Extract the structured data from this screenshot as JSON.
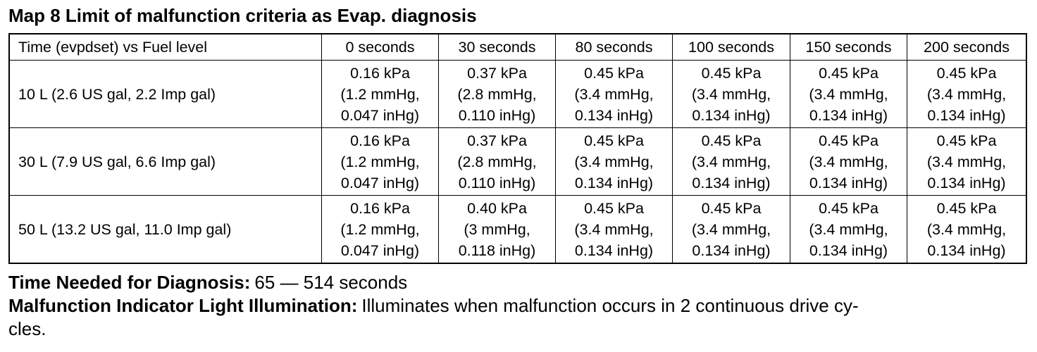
{
  "title": "Map 8 Limit of malfunction criteria as Evap. diagnosis",
  "table": {
    "header": [
      "Time (evpdset) vs Fuel level",
      "0 seconds",
      "30 seconds",
      "80 seconds",
      "100 seconds",
      "150 seconds",
      "200 seconds"
    ],
    "rows": [
      {
        "label": "10 L (2.6 US gal, 2.2 Imp gal)",
        "cells": [
          [
            "0.16 kPa",
            "(1.2 mmHg,",
            "0.047 inHg)"
          ],
          [
            "0.37 kPa",
            "(2.8 mmHg,",
            "0.110 inHg)"
          ],
          [
            "0.45 kPa",
            "(3.4 mmHg,",
            "0.134 inHg)"
          ],
          [
            "0.45 kPa",
            "(3.4 mmHg,",
            "0.134 inHg)"
          ],
          [
            "0.45 kPa",
            "(3.4 mmHg,",
            "0.134 inHg)"
          ],
          [
            "0.45 kPa",
            "(3.4 mmHg,",
            "0.134 inHg)"
          ]
        ]
      },
      {
        "label": "30 L (7.9 US gal, 6.6 Imp gal)",
        "cells": [
          [
            "0.16 kPa",
            "(1.2 mmHg,",
            "0.047 inHg)"
          ],
          [
            "0.37 kPa",
            "(2.8 mmHg,",
            "0.110 inHg)"
          ],
          [
            "0.45 kPa",
            "(3.4 mmHg,",
            "0.134 inHg)"
          ],
          [
            "0.45 kPa",
            "(3.4 mmHg,",
            "0.134 inHg)"
          ],
          [
            "0.45 kPa",
            "(3.4 mmHg,",
            "0.134 inHg)"
          ],
          [
            "0.45 kPa",
            "(3.4 mmHg,",
            "0.134 inHg)"
          ]
        ]
      },
      {
        "label": "50 L (13.2 US gal, 11.0 Imp gal)",
        "cells": [
          [
            "0.16 kPa",
            "(1.2 mmHg,",
            "0.047 inHg)"
          ],
          [
            "0.40 kPa",
            "(3 mmHg,",
            "0.118 inHg)"
          ],
          [
            "0.45 kPa",
            "(3.4 mmHg,",
            "0.134 inHg)"
          ],
          [
            "0.45 kPa",
            "(3.4 mmHg,",
            "0.134 inHg)"
          ],
          [
            "0.45 kPa",
            "(3.4 mmHg,",
            "0.134 inHg)"
          ],
          [
            "0.45 kPa",
            "(3.4 mmHg,",
            "0.134 inHg)"
          ]
        ]
      }
    ]
  },
  "notes": [
    {
      "label": "Time Needed for Diagnosis:",
      "text": [
        "65 — 514 seconds"
      ]
    },
    {
      "label": "Malfunction Indicator Light Illumination:",
      "text": [
        "Illuminates when malfunction occurs in 2 continuous drive cy-",
        "cles."
      ]
    }
  ]
}
